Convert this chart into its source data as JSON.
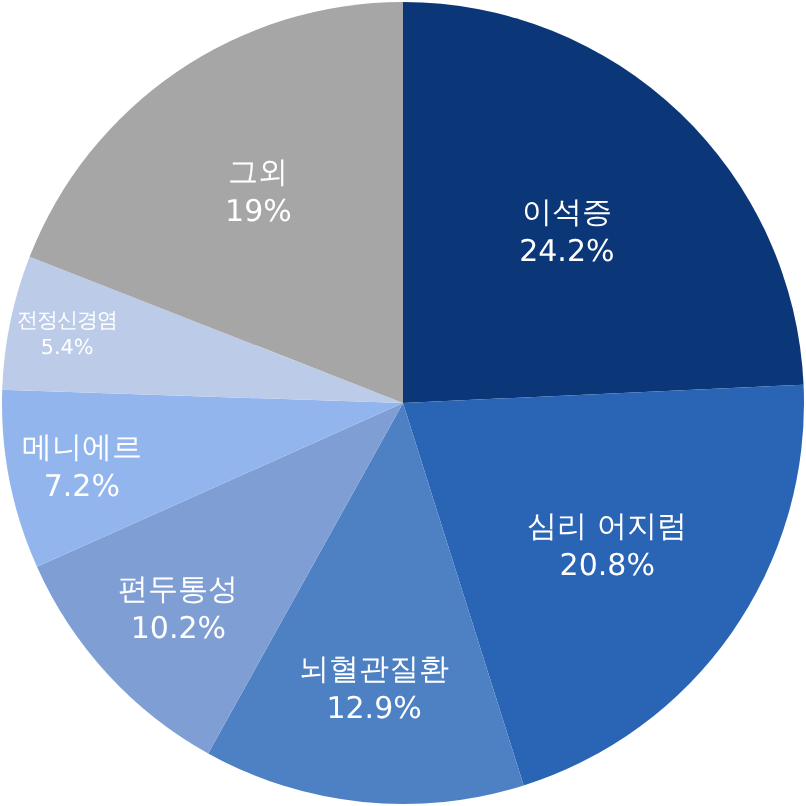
{
  "chart_data": {
    "type": "pie",
    "categories": [
      "이석증",
      "심리 어지럼",
      "뇌혈관질환",
      "편두통성",
      "메니에르",
      "전정신경염",
      "그외"
    ],
    "values": [
      24.2,
      20.8,
      12.9,
      10.2,
      7.2,
      5.4,
      19
    ],
    "value_labels": [
      "24.2%",
      "20.8%",
      "12.9%",
      "10.2%",
      "7.2%",
      "5.4%",
      "19%"
    ],
    "colors": [
      "#0b3778",
      "#2a64b5",
      "#4e80c4",
      "#7f9fd4",
      "#93b5ee",
      "#bccbe8",
      "#a6a6a6"
    ],
    "legend": false
  }
}
